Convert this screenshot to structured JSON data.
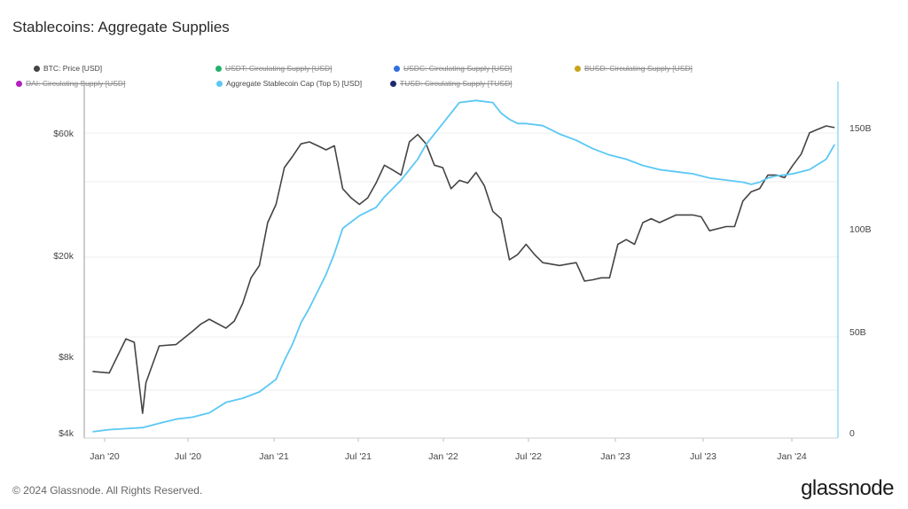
{
  "chart_data": {
    "type": "line",
    "title": "Stablecoins: Aggregate Supplies",
    "x_ticks": [
      "Jan '20",
      "Jul '20",
      "Jan '21",
      "Jul '21",
      "Jan '22",
      "Jul '22",
      "Jan '23",
      "Jul '23",
      "Jan '24"
    ],
    "left_axis": {
      "scale": "log",
      "ticks": [
        "$4k",
        "$8k",
        "$20k",
        "$60k"
      ],
      "range": [
        4000,
        100000
      ]
    },
    "right_axis": {
      "scale": "linear",
      "ticks": [
        "0",
        "50B",
        "100B",
        "150B"
      ],
      "range": [
        0,
        170
      ]
    },
    "legend": [
      {
        "label": "BTC: Price [USD]",
        "color": "#444444",
        "visible": true
      },
      {
        "label": "USDT: Circulating Supply [USD]",
        "color": "#23b26a",
        "visible": false
      },
      {
        "label": "USDC: Circulating Supply [USD]",
        "color": "#2f6fdf",
        "visible": false
      },
      {
        "label": "BUSD: Circulating Supply [USD]",
        "color": "#c9a418",
        "visible": false
      },
      {
        "label": "DAI: Circulating Supply [USD]",
        "color": "#b41fc0",
        "visible": false
      },
      {
        "label": "Aggregate Stablecoin Cap (Top 5) [USD]",
        "color": "#5bc8f5",
        "visible": true
      },
      {
        "label": "TUSD: Circulating Supply [TUSD]",
        "color": "#1f2a6e",
        "visible": false
      }
    ],
    "series": [
      {
        "name": "BTC: Price [USD]",
        "axis": "left",
        "color": "#444444",
        "x": [
          2019.9,
          2020.0,
          2020.1,
          2020.15,
          2020.2,
          2020.22,
          2020.3,
          2020.4,
          2020.5,
          2020.55,
          2020.6,
          2020.7,
          2020.75,
          2020.8,
          2020.85,
          2020.9,
          2020.95,
          2021.0,
          2021.05,
          2021.1,
          2021.15,
          2021.2,
          2021.25,
          2021.3,
          2021.35,
          2021.4,
          2021.45,
          2021.5,
          2021.55,
          2021.6,
          2021.65,
          2021.7,
          2021.75,
          2021.8,
          2021.85,
          2021.9,
          2021.95,
          2022.0,
          2022.05,
          2022.1,
          2022.15,
          2022.2,
          2022.25,
          2022.3,
          2022.35,
          2022.4,
          2022.45,
          2022.5,
          2022.55,
          2022.6,
          2022.7,
          2022.8,
          2022.85,
          2022.9,
          2022.95,
          2023.0,
          2023.05,
          2023.1,
          2023.15,
          2023.2,
          2023.25,
          2023.3,
          2023.4,
          2023.5,
          2023.55,
          2023.6,
          2023.7,
          2023.75,
          2023.8,
          2023.85,
          2023.9,
          2023.95,
          2024.0,
          2024.05,
          2024.1,
          2024.15,
          2024.2,
          2024.25,
          2024.3,
          2024.35
        ],
        "values": [
          7300,
          7200,
          9800,
          9500,
          5000,
          6600,
          9200,
          9300,
          10500,
          11200,
          11700,
          10800,
          11500,
          13500,
          17000,
          19000,
          28000,
          33000,
          46000,
          51000,
          57000,
          58000,
          56000,
          54000,
          56000,
          38000,
          35000,
          33000,
          35000,
          40000,
          47000,
          45000,
          43000,
          58000,
          62000,
          57000,
          47000,
          46000,
          38000,
          41000,
          40000,
          44000,
          39000,
          31000,
          29000,
          20000,
          21000,
          23000,
          21000,
          19500,
          19000,
          19500,
          16500,
          16700,
          17000,
          17000,
          23000,
          24000,
          23000,
          28000,
          29000,
          28000,
          30000,
          30000,
          29500,
          26000,
          27000,
          27000,
          34000,
          37000,
          38000,
          43000,
          43000,
          42000,
          47000,
          52000,
          63000,
          65000,
          67000,
          66000
        ]
      },
      {
        "name": "Aggregate Stablecoin Cap (Top 5) [USD]",
        "axis": "right",
        "color": "#5bc8f5",
        "x": [
          2019.9,
          2020.0,
          2020.1,
          2020.2,
          2020.3,
          2020.4,
          2020.5,
          2020.6,
          2020.7,
          2020.8,
          2020.9,
          2021.0,
          2021.05,
          2021.1,
          2021.15,
          2021.2,
          2021.25,
          2021.3,
          2021.35,
          2021.4,
          2021.45,
          2021.5,
          2021.55,
          2021.6,
          2021.65,
          2021.7,
          2021.75,
          2021.8,
          2021.85,
          2021.9,
          2021.95,
          2022.0,
          2022.1,
          2022.2,
          2022.3,
          2022.35,
          2022.4,
          2022.45,
          2022.5,
          2022.6,
          2022.7,
          2022.8,
          2022.9,
          2023.0,
          2023.1,
          2023.2,
          2023.3,
          2023.4,
          2023.5,
          2023.6,
          2023.7,
          2023.8,
          2023.85,
          2023.9,
          2023.95,
          2024.0,
          2024.1,
          2024.2,
          2024.3,
          2024.35
        ],
        "values": [
          3,
          4,
          4.5,
          5,
          7,
          9,
          10,
          12,
          17,
          19,
          22,
          28,
          37,
          45,
          55,
          62,
          70,
          78,
          88,
          100,
          103,
          106,
          108,
          110,
          115,
          119,
          123,
          128,
          133,
          140,
          145,
          150,
          160,
          161,
          160,
          155,
          152,
          150,
          150,
          149,
          145,
          142,
          138,
          135,
          133,
          130,
          128,
          127,
          126,
          124,
          123,
          122,
          121,
          122,
          124,
          125,
          126,
          128,
          133,
          140
        ]
      }
    ]
  },
  "footer": {
    "copyright": "© 2024 Glassnode. All Rights Reserved.",
    "brand": "glassnode"
  }
}
